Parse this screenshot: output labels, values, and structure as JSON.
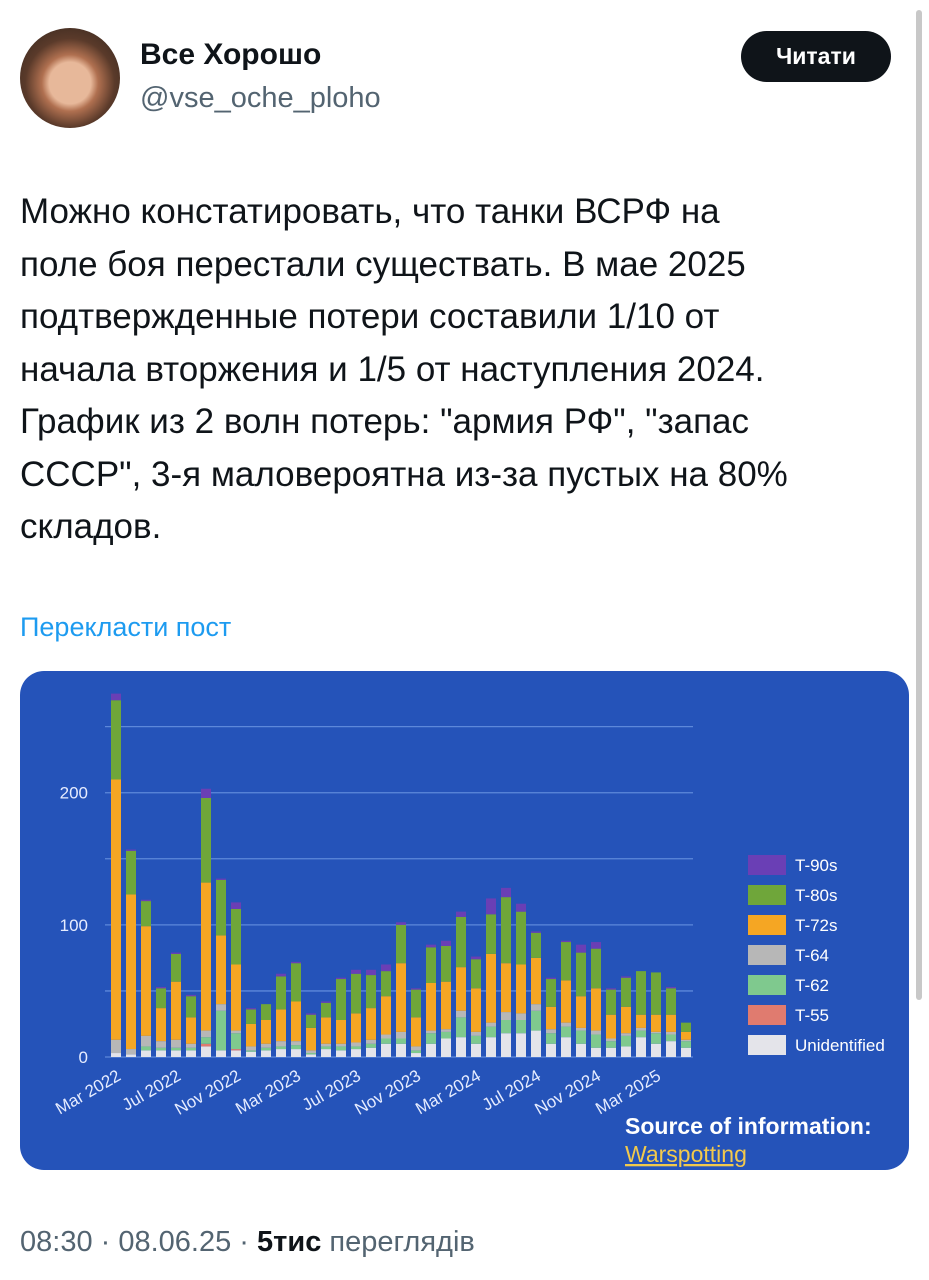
{
  "tweet": {
    "name": "Все Хорошо",
    "handle": "@vse_oche_ploho",
    "button": "Читати",
    "body": [
      "Можно констатировать, что танки ВСРФ на",
      "поле боя перестали существать. В мае 2025",
      "подтвержденные потери составили 1/10 от",
      "начала вторжения и 1/5 от наступления 2024.",
      "График из 2 волн потерь: \"армия РФ\", \"запас",
      "СССР\", 3-я маловероятна из-за пустых на 80%",
      "складов."
    ],
    "translate": "Перекласти пост",
    "time": "08:30",
    "date": "08.06.25",
    "views": "5тис",
    "views_label": "переглядів"
  },
  "chart_data": {
    "type": "stacked_bar",
    "categories": [
      "Mar 2022",
      null,
      null,
      null,
      "Jul 2022",
      null,
      null,
      null,
      "Nov 2022",
      null,
      null,
      null,
      "Mar 2023",
      null,
      null,
      null,
      "Jul 2023",
      null,
      null,
      null,
      "Nov 2023",
      null,
      null,
      null,
      "Mar 2024",
      null,
      null,
      null,
      "Jul 2024",
      null,
      null,
      null,
      "Nov 2024",
      null,
      null,
      null,
      "Mar 2025",
      null,
      null
    ],
    "series": [
      {
        "name": "Unidentified",
        "color": "#e4e4ea",
        "values": [
          3,
          2,
          5,
          5,
          5,
          5,
          8,
          5,
          5,
          4,
          5,
          6,
          6,
          2,
          6,
          5,
          6,
          7,
          10,
          10,
          3,
          10,
          14,
          15,
          10,
          15,
          18,
          18,
          20,
          10,
          15,
          10,
          7,
          7,
          8,
          15,
          10,
          12,
          7
        ]
      },
      {
        "name": "T-55",
        "color": "#e07b6f",
        "values": [
          0,
          0,
          0,
          0,
          0,
          0,
          2,
          0,
          1,
          0,
          0,
          0,
          0,
          0,
          0,
          0,
          0,
          0,
          0,
          0,
          0,
          0,
          0,
          0,
          0,
          0,
          0,
          0,
          0,
          0,
          0,
          0,
          0,
          0,
          0,
          0,
          0,
          0,
          0
        ]
      },
      {
        "name": "T-62",
        "color": "#7fc98e",
        "values": [
          0,
          0,
          3,
          2,
          2,
          2,
          5,
          30,
          12,
          1,
          2,
          2,
          3,
          1,
          2,
          3,
          2,
          3,
          4,
          4,
          2,
          8,
          5,
          15,
          6,
          8,
          10,
          10,
          15,
          8,
          8,
          10,
          10,
          5,
          8,
          5,
          8,
          5,
          5
        ]
      },
      {
        "name": "T-64",
        "color": "#b7b7b7",
        "values": [
          10,
          4,
          8,
          5,
          6,
          3,
          5,
          5,
          2,
          3,
          3,
          4,
          3,
          2,
          2,
          2,
          3,
          3,
          3,
          5,
          3,
          2,
          2,
          5,
          3,
          3,
          6,
          5,
          5,
          3,
          3,
          2,
          3,
          2,
          2,
          2,
          1,
          2,
          1
        ]
      },
      {
        "name": "T-72s",
        "color": "#f5a623",
        "values": [
          197,
          117,
          83,
          25,
          44,
          20,
          112,
          52,
          50,
          17,
          18,
          24,
          30,
          17,
          20,
          18,
          22,
          24,
          29,
          52,
          22,
          36,
          36,
          33,
          33,
          52,
          37,
          37,
          35,
          17,
          32,
          24,
          32,
          18,
          20,
          10,
          13,
          13,
          6
        ]
      },
      {
        "name": "T-80s",
        "color": "#6fa63a",
        "values": [
          60,
          33,
          19,
          15,
          21,
          16,
          64,
          42,
          42,
          11,
          12,
          25,
          29,
          10,
          11,
          31,
          30,
          25,
          19,
          29,
          21,
          27,
          27,
          38,
          22,
          30,
          50,
          40,
          19,
          21,
          29,
          33,
          30,
          19,
          22,
          33,
          32,
          20,
          7
        ]
      },
      {
        "name": "T-90s",
        "color": "#6a3fb5",
        "values": [
          5,
          1,
          1,
          1,
          1,
          1,
          7,
          1,
          5,
          1,
          0,
          2,
          1,
          1,
          1,
          1,
          3,
          4,
          5,
          2,
          1,
          2,
          4,
          4,
          2,
          12,
          7,
          6,
          1,
          1,
          1,
          6,
          5,
          1,
          1,
          0,
          0,
          1,
          0
        ]
      }
    ],
    "ylim": [
      0,
      280
    ],
    "yticks": [
      0,
      100,
      200
    ],
    "gridlines": [
      50,
      150,
      250
    ],
    "source_label": "Source of information:",
    "source_name": "Warspotting"
  }
}
